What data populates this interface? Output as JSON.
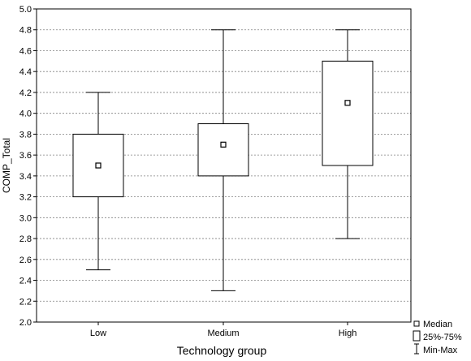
{
  "chart_data": {
    "type": "boxplot",
    "xlabel": "Technology group",
    "ylabel": "COMP_Total",
    "ylim": [
      2.0,
      5.0
    ],
    "yticks": [
      "2.0",
      "2.2",
      "2.4",
      "2.6",
      "2.8",
      "3.0",
      "3.2",
      "3.4",
      "3.6",
      "3.8",
      "4.0",
      "4.2",
      "4.4",
      "4.6",
      "4.8",
      "5.0"
    ],
    "grid": "horizontal-dashed",
    "categories": [
      "Low",
      "Medium",
      "High"
    ],
    "boxes": [
      {
        "category": "Low",
        "min": 2.5,
        "q1": 3.2,
        "median": 3.5,
        "q3": 3.8,
        "max": 4.2
      },
      {
        "category": "Medium",
        "min": 2.3,
        "q1": 3.4,
        "median": 3.7,
        "q3": 3.9,
        "max": 4.8
      },
      {
        "category": "High",
        "min": 2.8,
        "q1": 3.5,
        "median": 4.1,
        "q3": 4.5,
        "max": 4.8
      }
    ],
    "legend": {
      "position": "bottom-right",
      "entries": [
        {
          "symbol": "small-square",
          "label": "Median"
        },
        {
          "symbol": "box",
          "label": "25%-75%"
        },
        {
          "symbol": "whisker",
          "label": "Min-Max"
        }
      ]
    }
  }
}
